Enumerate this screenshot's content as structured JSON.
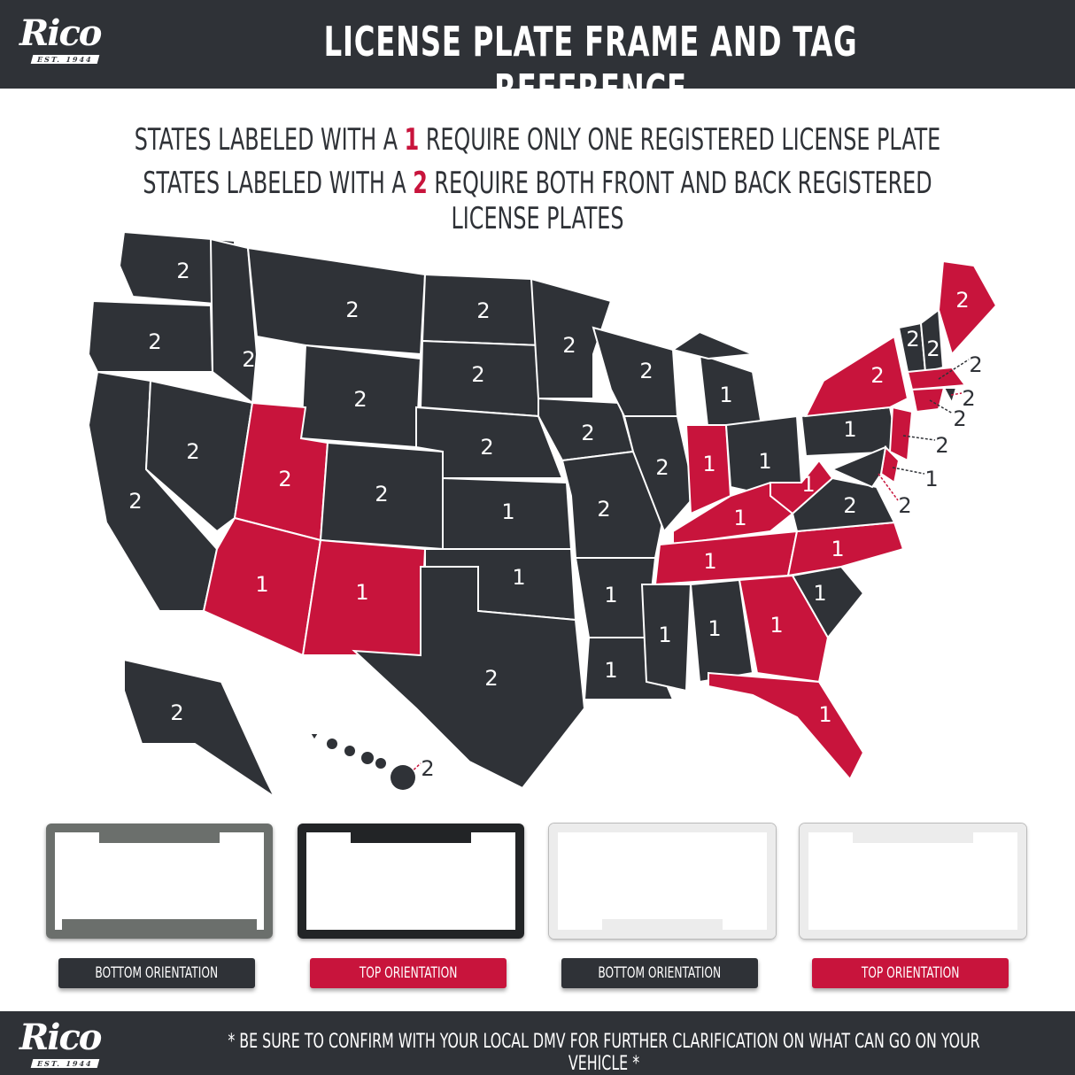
{
  "header": {
    "logo": "Rico",
    "logo_sub": "EST. 1944",
    "title": "LICENSE PLATE FRAME AND TAG REFERENCE"
  },
  "subtitle": {
    "line1": {
      "pre": "STATES LABELED WITH A ",
      "num": "1",
      "post": " REQUIRE ONLY ONE REGISTERED LICENSE PLATE"
    },
    "line2": {
      "pre": "STATES LABELED WITH A ",
      "num": "2",
      "post": " REQUIRE BOTH FRONT AND BACK REGISTERED LICENSE PLATES"
    }
  },
  "colors": {
    "dark": "#2f3237",
    "accent": "#c8143c"
  },
  "map": {
    "states": [
      {
        "plates": "2",
        "highlight": false
      },
      {
        "plates": "2",
        "highlight": false
      },
      {
        "plates": "2",
        "highlight": false
      },
      {
        "plates": "2",
        "highlight": false
      },
      {
        "plates": "2",
        "highlight": false
      },
      {
        "plates": "2",
        "highlight": false
      },
      {
        "plates": "2",
        "highlight": false
      },
      {
        "plates": "2",
        "highlight": true
      },
      {
        "plates": "2",
        "highlight": false
      },
      {
        "plates": "1",
        "highlight": true
      },
      {
        "plates": "1",
        "highlight": true
      },
      {
        "plates": "2",
        "highlight": false
      },
      {
        "plates": "2",
        "highlight": false
      },
      {
        "plates": "2",
        "highlight": false
      },
      {
        "plates": "1",
        "highlight": false
      },
      {
        "plates": "1",
        "highlight": false
      },
      {
        "plates": "2",
        "highlight": false
      },
      {
        "plates": "2",
        "highlight": false
      },
      {
        "plates": "2",
        "highlight": false
      },
      {
        "plates": "2",
        "highlight": false
      },
      {
        "plates": "1",
        "highlight": false
      },
      {
        "plates": "1",
        "highlight": false
      },
      {
        "plates": "2",
        "highlight": false
      },
      {
        "plates": "2",
        "highlight": false
      },
      {
        "plates": "1",
        "highlight": false
      },
      {
        "plates": "1",
        "highlight": true
      },
      {
        "plates": "1",
        "highlight": false
      },
      {
        "plates": "1",
        "highlight": true
      },
      {
        "plates": "1",
        "highlight": true
      },
      {
        "plates": "1",
        "highlight": false
      },
      {
        "plates": "1",
        "highlight": false
      },
      {
        "plates": "1",
        "highlight": true
      },
      {
        "plates": "1",
        "highlight": true
      },
      {
        "plates": "1",
        "highlight": false
      },
      {
        "plates": "1",
        "highlight": true
      },
      {
        "plates": "2",
        "highlight": false
      },
      {
        "plates": "1",
        "highlight": true
      },
      {
        "plates": "1",
        "highlight": false
      },
      {
        "plates": "2",
        "highlight": true
      },
      {
        "plates": "2",
        "highlight": false
      },
      {
        "plates": "2",
        "highlight": false
      },
      {
        "plates": "2",
        "highlight": true
      },
      {
        "plates": "2",
        "highlight": true
      },
      {
        "plates": "2",
        "highlight": false
      },
      {
        "plates": "2",
        "highlight": true
      },
      {
        "plates": "2",
        "highlight": true
      },
      {
        "plates": "1",
        "highlight": true
      },
      {
        "plates": "2",
        "highlight": false
      },
      {
        "plates": "2",
        "highlight": false
      },
      {
        "plates": "2",
        "highlight": false
      }
    ]
  },
  "frames": [
    {
      "label": "BOTTOM ORIENTATION",
      "label_color": "#2f3237",
      "frame_color": "#6b6f6c"
    },
    {
      "label": "TOP ORIENTATION",
      "label_color": "#c8143c",
      "frame_color": "#222426"
    },
    {
      "label": "BOTTOM ORIENTATION",
      "label_color": "#2f3237",
      "frame_color": "#ececec"
    },
    {
      "label": "TOP ORIENTATION",
      "label_color": "#c8143c",
      "frame_color": "#ececec"
    }
  ],
  "footer": {
    "logo": "Rico",
    "logo_sub": "EST. 1944",
    "note": "* BE SURE TO CONFIRM WITH YOUR LOCAL DMV FOR FURTHER CLARIFICATION ON WHAT CAN GO ON YOUR VEHICLE *"
  }
}
